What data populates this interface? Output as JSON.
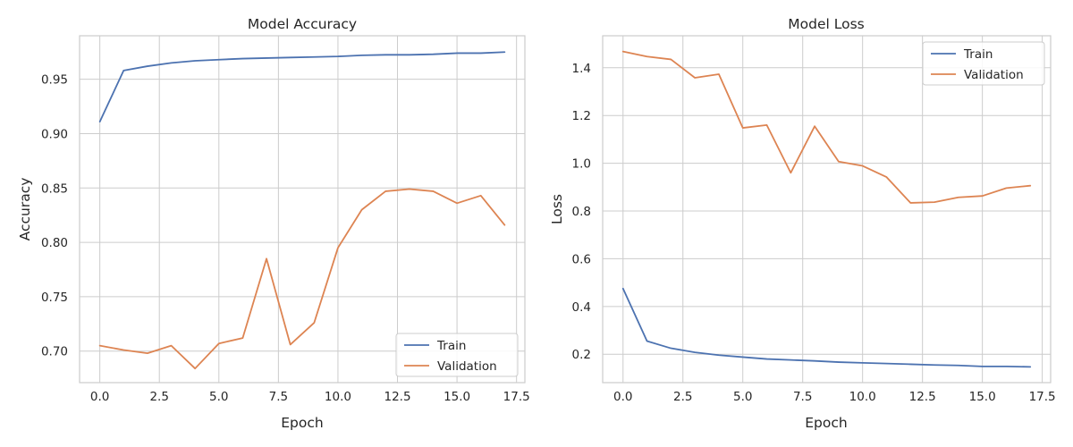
{
  "chart_data": [
    {
      "type": "line",
      "title": "Model Accuracy",
      "xlabel": "Epoch",
      "ylabel": "Accuracy",
      "xlim": [
        -0.85,
        17.85
      ],
      "ylim": [
        0.671,
        0.99
      ],
      "xticks": [
        "0.0",
        "2.5",
        "5.0",
        "7.5",
        "10.0",
        "12.5",
        "15.0",
        "17.5"
      ],
      "yticks": [
        "0.70",
        "0.75",
        "0.80",
        "0.85",
        "0.90",
        "0.95"
      ],
      "grid": true,
      "legend_position": "lower-right",
      "x": [
        0,
        1,
        2,
        3,
        4,
        5,
        6,
        7,
        8,
        9,
        10,
        11,
        12,
        13,
        14,
        15,
        16,
        17
      ],
      "series": [
        {
          "name": "Train",
          "color": "#4c72b0",
          "values": [
            0.911,
            0.958,
            0.962,
            0.965,
            0.967,
            0.968,
            0.969,
            0.9695,
            0.97,
            0.9705,
            0.971,
            0.972,
            0.9725,
            0.9725,
            0.973,
            0.974,
            0.974,
            0.975
          ]
        },
        {
          "name": "Validation",
          "color": "#dd8452",
          "values": [
            0.705,
            0.701,
            0.698,
            0.705,
            0.684,
            0.707,
            0.712,
            0.785,
            0.706,
            0.726,
            0.795,
            0.83,
            0.847,
            0.849,
            0.847,
            0.836,
            0.843,
            0.816
          ]
        }
      ]
    },
    {
      "type": "line",
      "title": "Model Loss",
      "xlabel": "Epoch",
      "ylabel": "Loss",
      "xlim": [
        -0.85,
        17.85
      ],
      "ylim": [
        0.081,
        1.534
      ],
      "xticks": [
        "0.0",
        "2.5",
        "5.0",
        "7.5",
        "10.0",
        "12.5",
        "15.0",
        "17.5"
      ],
      "yticks": [
        "0.2",
        "0.4",
        "0.6",
        "0.8",
        "1.0",
        "1.2",
        "1.4"
      ],
      "grid": true,
      "legend_position": "upper-right",
      "x": [
        0,
        1,
        2,
        3,
        4,
        5,
        6,
        7,
        8,
        9,
        10,
        11,
        12,
        13,
        14,
        15,
        16,
        17
      ],
      "series": [
        {
          "name": "Train",
          "color": "#4c72b0",
          "values": [
            0.475,
            0.255,
            0.225,
            0.208,
            0.196,
            0.188,
            0.18,
            0.176,
            0.172,
            0.167,
            0.164,
            0.161,
            0.158,
            0.155,
            0.153,
            0.149,
            0.149,
            0.147
          ]
        },
        {
          "name": "Validation",
          "color": "#dd8452",
          "values": [
            1.468,
            1.447,
            1.435,
            1.358,
            1.373,
            1.148,
            1.16,
            0.96,
            1.155,
            1.007,
            0.989,
            0.942,
            0.834,
            0.837,
            0.857,
            0.863,
            0.896,
            0.906
          ]
        }
      ]
    }
  ]
}
